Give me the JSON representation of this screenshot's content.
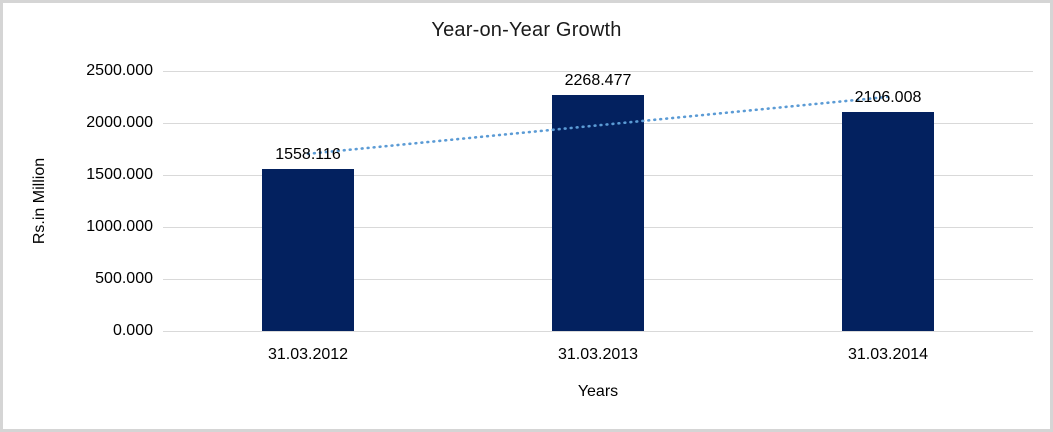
{
  "chart_data": {
    "type": "bar",
    "title": "Year-on-Year Growth",
    "xlabel": "Years",
    "ylabel": "Rs.in Million",
    "categories": [
      "31.03.2012",
      "31.03.2013",
      "31.03.2014"
    ],
    "values": [
      1558.116,
      2268.477,
      2106.008
    ],
    "data_labels": [
      "1558.116",
      "2268.477",
      "2106.008"
    ],
    "ylim": [
      0,
      2500
    ],
    "y_ticks": [
      0,
      500,
      1000,
      1500,
      2000,
      2500
    ],
    "y_tick_labels": [
      "0.000",
      "500.000",
      "1000.000",
      "1500.000",
      "2000.000",
      "2500.000"
    ],
    "grid": "horizontal",
    "legend": "none",
    "bar_color": "#03215f",
    "gridline_color": "#d9d9d9",
    "trendline": {
      "type": "linear",
      "style": "dotted",
      "color": "#5b9bd5",
      "start_value": 1703.6,
      "end_value": 2251.4
    }
  }
}
